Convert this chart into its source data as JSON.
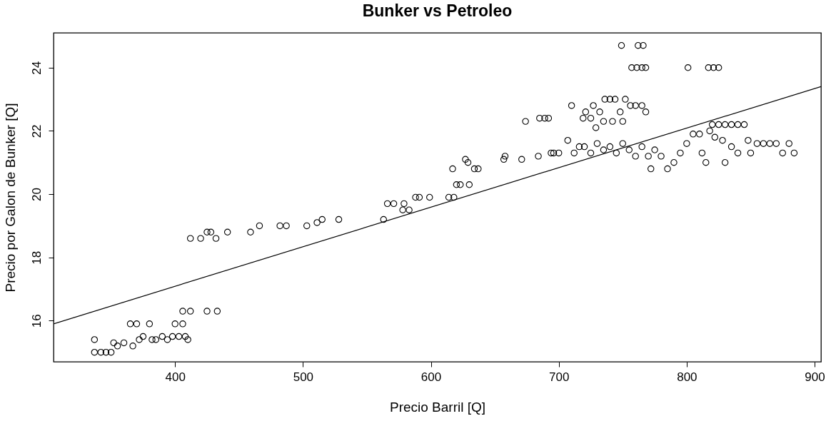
{
  "chart_data": {
    "type": "scatter",
    "title": "Bunker vs Petroleo",
    "xlabel": "Precio Barril [Q]",
    "ylabel": "Precio por Galon de Bunker [Q]",
    "xlim": [
      305,
      905
    ],
    "xticks": [
      400,
      500,
      600,
      700,
      800,
      900
    ],
    "ylim": [
      14.7,
      25.1
    ],
    "yticks": [
      16,
      18,
      20,
      22,
      24
    ],
    "grid": false,
    "series": [
      {
        "color": "#000000",
        "marker": "circle",
        "x": [
          337,
          337,
          342,
          346,
          350,
          352,
          355,
          360,
          365,
          367,
          370,
          372,
          375,
          380,
          382,
          385,
          390,
          394,
          398,
          400,
          403,
          406,
          408,
          410,
          406,
          412,
          425,
          433,
          412,
          420,
          425,
          428,
          432,
          441,
          459,
          466,
          482,
          487,
          503,
          511,
          515,
          528,
          563,
          566,
          571,
          578,
          579,
          583,
          588,
          591,
          599,
          614,
          618,
          617,
          620,
          623,
          627,
          630,
          629,
          634,
          637,
          657,
          658,
          671,
          674,
          685,
          689,
          684,
          692,
          694,
          696,
          700,
          707,
          710,
          712,
          716,
          719,
          721,
          725,
          727,
          732,
          736,
          740,
          744,
          748,
          752,
          756,
          760,
          765,
          768,
          729,
          735,
          742,
          750,
          720,
          725,
          730,
          735,
          740,
          745,
          750,
          755,
          760,
          765,
          770,
          772,
          775,
          780,
          785,
          790,
          795,
          800,
          805,
          810,
          812,
          815,
          818,
          820,
          825,
          830,
          835,
          840,
          845,
          822,
          828,
          835,
          840,
          850,
          855,
          860,
          865,
          870,
          875,
          880,
          884,
          848,
          830,
          749,
          762,
          766,
          757,
          761,
          765,
          768,
          801,
          817,
          821,
          825
        ],
        "values": [
          15.0,
          15.4,
          15.0,
          15.0,
          15.0,
          15.3,
          15.2,
          15.3,
          15.9,
          15.2,
          15.9,
          15.4,
          15.5,
          15.9,
          15.4,
          15.4,
          15.5,
          15.4,
          15.5,
          15.9,
          15.5,
          15.9,
          15.5,
          15.4,
          16.3,
          16.3,
          16.3,
          16.3,
          18.6,
          18.6,
          18.8,
          18.8,
          18.6,
          18.8,
          18.8,
          19.0,
          19.0,
          19.0,
          19.0,
          19.1,
          19.2,
          19.2,
          19.2,
          19.7,
          19.7,
          19.5,
          19.7,
          19.5,
          19.9,
          19.9,
          19.9,
          19.9,
          19.9,
          20.8,
          20.3,
          20.3,
          21.1,
          20.3,
          21.0,
          20.8,
          20.8,
          21.1,
          21.2,
          21.1,
          22.3,
          22.4,
          22.4,
          21.2,
          22.4,
          21.3,
          21.3,
          21.3,
          21.7,
          22.8,
          21.3,
          21.5,
          22.4,
          22.6,
          22.4,
          22.8,
          22.6,
          23.0,
          23.0,
          23.0,
          22.6,
          23.0,
          22.8,
          22.8,
          22.8,
          22.6,
          22.1,
          22.3,
          22.3,
          22.3,
          21.5,
          21.3,
          21.6,
          21.4,
          21.5,
          21.3,
          21.6,
          21.4,
          21.2,
          21.5,
          21.2,
          20.8,
          21.4,
          21.2,
          20.8,
          21.0,
          21.3,
          21.6,
          21.9,
          21.9,
          21.3,
          21.0,
          22.0,
          22.2,
          22.2,
          22.2,
          22.2,
          22.2,
          22.2,
          21.8,
          21.7,
          21.5,
          21.3,
          21.3,
          21.6,
          21.6,
          21.6,
          21.6,
          21.3,
          21.6,
          21.3,
          21.7,
          21.0,
          24.7,
          24.7,
          24.7,
          24.0,
          24.0,
          24.0,
          24.0,
          24.0,
          24.0,
          24.0,
          24.0
        ]
      },
      {
        "type": "line",
        "color": "#000000",
        "x": [
          305,
          905
        ],
        "values": [
          15.9,
          23.4
        ]
      }
    ]
  }
}
